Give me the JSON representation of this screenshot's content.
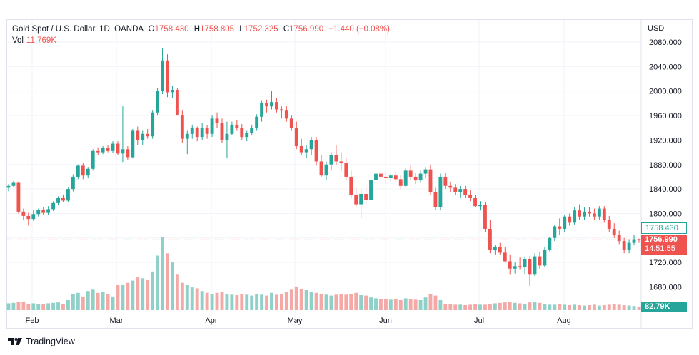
{
  "legend": {
    "symbol": "Gold Spot / U.S. Dollar, 1D, OANDA",
    "o_label": "O",
    "o": "1758.430",
    "h_label": "H",
    "h": "1758.805",
    "l_label": "L",
    "l": "1752.325",
    "c_label": "C",
    "c": "1756.990",
    "change": "−1.440 (−0.08%)",
    "vol_label": "Vol",
    "vol": "11.769K"
  },
  "currency": "USD",
  "tags": {
    "open_price": "1758.430",
    "last_price": "1756.990",
    "countdown": "14:51:55",
    "volume": "82.79K"
  },
  "colors": {
    "up": "#26a69a",
    "down": "#ef5350",
    "up_vol": "#8fd0c8",
    "down_vol": "#f4a9a7"
  },
  "branding": {
    "name": "TradingView"
  },
  "chart_data": {
    "type": "candlestick",
    "title": "Gold Spot / U.S. Dollar, 1D, OANDA",
    "y_ticks": [
      1680,
      1720,
      1760,
      1800,
      1840,
      1880,
      1920,
      1960,
      2000,
      2040,
      2080
    ],
    "ylim": [
      1650,
      2100
    ],
    "x_months": [
      "Feb",
      "Mar",
      "Apr",
      "May",
      "Jun",
      "Jul",
      "Aug"
    ],
    "grid": true,
    "candles": [
      [
        1842,
        1848,
        1836,
        1845,
        15
      ],
      [
        1845,
        1853,
        1843,
        1850,
        16
      ],
      [
        1850,
        1852,
        1800,
        1803,
        18
      ],
      [
        1803,
        1808,
        1790,
        1796,
        19
      ],
      [
        1796,
        1801,
        1780,
        1791,
        14
      ],
      [
        1791,
        1805,
        1788,
        1799,
        15
      ],
      [
        1799,
        1808,
        1795,
        1806,
        14
      ],
      [
        1806,
        1810,
        1797,
        1801,
        13
      ],
      [
        1801,
        1812,
        1798,
        1807,
        15
      ],
      [
        1807,
        1820,
        1804,
        1817,
        16
      ],
      [
        1817,
        1828,
        1813,
        1825,
        17
      ],
      [
        1825,
        1831,
        1818,
        1821,
        14
      ],
      [
        1821,
        1842,
        1819,
        1840,
        22
      ],
      [
        1840,
        1864,
        1836,
        1860,
        35
      ],
      [
        1860,
        1880,
        1856,
        1878,
        38
      ],
      [
        1878,
        1882,
        1856,
        1862,
        30
      ],
      [
        1862,
        1876,
        1858,
        1873,
        42
      ],
      [
        1873,
        1905,
        1870,
        1902,
        45
      ],
      [
        1902,
        1908,
        1896,
        1900,
        38
      ],
      [
        1900,
        1910,
        1897,
        1907,
        40
      ],
      [
        1907,
        1912,
        1900,
        1902,
        36
      ],
      [
        1902,
        1918,
        1899,
        1914,
        30
      ],
      [
        1914,
        1918,
        1895,
        1898,
        55
      ],
      [
        1898,
        1975,
        1884,
        1905,
        55
      ],
      [
        1905,
        1910,
        1888,
        1892,
        60
      ],
      [
        1892,
        1938,
        1890,
        1935,
        65
      ],
      [
        1935,
        1942,
        1912,
        1920,
        72
      ],
      [
        1920,
        1935,
        1912,
        1930,
        70
      ],
      [
        1930,
        1938,
        1922,
        1926,
        66
      ],
      [
        1926,
        1968,
        1922,
        1965,
        85
      ],
      [
        1965,
        2005,
        1960,
        2000,
        120
      ],
      [
        2000,
        2070,
        1995,
        2050,
        160
      ],
      [
        2050,
        2060,
        1990,
        1998,
        125
      ],
      [
        1998,
        2008,
        1988,
        2002,
        105
      ],
      [
        2002,
        2005,
        1960,
        1960,
        78
      ],
      [
        1960,
        1968,
        1915,
        1922,
        60
      ],
      [
        1922,
        1935,
        1897,
        1930,
        55
      ],
      [
        1930,
        1945,
        1922,
        1940,
        50
      ],
      [
        1940,
        1942,
        1918,
        1925,
        48
      ],
      [
        1925,
        1948,
        1920,
        1940,
        42
      ],
      [
        1940,
        1944,
        1922,
        1930,
        38
      ],
      [
        1930,
        1960,
        1925,
        1955,
        36
      ],
      [
        1955,
        1965,
        1940,
        1948,
        38
      ],
      [
        1948,
        1955,
        1915,
        1920,
        40
      ],
      [
        1920,
        1950,
        1890,
        1930,
        35
      ],
      [
        1930,
        1950,
        1928,
        1945,
        34
      ],
      [
        1945,
        1952,
        1935,
        1940,
        33
      ],
      [
        1940,
        1946,
        1920,
        1925,
        36
      ],
      [
        1925,
        1935,
        1918,
        1932,
        34
      ],
      [
        1932,
        1945,
        1928,
        1940,
        32
      ],
      [
        1940,
        1962,
        1935,
        1958,
        36
      ],
      [
        1958,
        1985,
        1950,
        1980,
        34
      ],
      [
        1980,
        1986,
        1965,
        1975,
        32
      ],
      [
        1975,
        2000,
        1970,
        1982,
        38
      ],
      [
        1982,
        1988,
        1965,
        1970,
        34
      ],
      [
        1970,
        1975,
        1955,
        1968,
        36
      ],
      [
        1968,
        1975,
        1950,
        1955,
        40
      ],
      [
        1955,
        1960,
        1935,
        1940,
        45
      ],
      [
        1940,
        1950,
        1905,
        1910,
        52
      ],
      [
        1910,
        1922,
        1895,
        1900,
        46
      ],
      [
        1900,
        1912,
        1890,
        1905,
        44
      ],
      [
        1905,
        1925,
        1895,
        1920,
        40
      ],
      [
        1920,
        1925,
        1878,
        1885,
        38
      ],
      [
        1885,
        1895,
        1860,
        1862,
        36
      ],
      [
        1862,
        1885,
        1855,
        1880,
        34
      ],
      [
        1880,
        1900,
        1870,
        1895,
        32
      ],
      [
        1895,
        1912,
        1880,
        1885,
        34
      ],
      [
        1885,
        1900,
        1870,
        1882,
        36
      ],
      [
        1882,
        1890,
        1855,
        1860,
        34
      ],
      [
        1860,
        1870,
        1825,
        1830,
        35
      ],
      [
        1830,
        1842,
        1810,
        1815,
        38
      ],
      [
        1815,
        1838,
        1792,
        1832,
        33
      ],
      [
        1832,
        1845,
        1815,
        1822,
        32
      ],
      [
        1822,
        1858,
        1820,
        1855,
        28
      ],
      [
        1855,
        1870,
        1850,
        1865,
        26
      ],
      [
        1865,
        1872,
        1855,
        1860,
        25
      ],
      [
        1860,
        1868,
        1848,
        1858,
        24
      ],
      [
        1858,
        1866,
        1852,
        1862,
        23
      ],
      [
        1862,
        1868,
        1852,
        1856,
        24
      ],
      [
        1856,
        1862,
        1840,
        1845,
        22
      ],
      [
        1845,
        1875,
        1842,
        1870,
        26
      ],
      [
        1870,
        1878,
        1855,
        1860,
        24
      ],
      [
        1860,
        1866,
        1848,
        1854,
        23
      ],
      [
        1854,
        1870,
        1850,
        1865,
        22
      ],
      [
        1865,
        1876,
        1858,
        1872,
        28
      ],
      [
        1872,
        1880,
        1830,
        1835,
        36
      ],
      [
        1835,
        1842,
        1805,
        1810,
        32
      ],
      [
        1810,
        1865,
        1805,
        1860,
        22
      ],
      [
        1860,
        1866,
        1840,
        1845,
        14
      ],
      [
        1845,
        1852,
        1835,
        1842,
        13
      ],
      [
        1842,
        1848,
        1830,
        1835,
        12
      ],
      [
        1835,
        1845,
        1825,
        1840,
        12
      ],
      [
        1840,
        1845,
        1825,
        1830,
        11
      ],
      [
        1830,
        1838,
        1820,
        1825,
        12
      ],
      [
        1825,
        1830,
        1810,
        1812,
        13
      ],
      [
        1812,
        1820,
        1805,
        1814,
        12
      ],
      [
        1814,
        1818,
        1770,
        1775,
        12
      ],
      [
        1775,
        1790,
        1735,
        1740,
        14
      ],
      [
        1740,
        1748,
        1732,
        1745,
        15
      ],
      [
        1745,
        1752,
        1732,
        1736,
        16
      ],
      [
        1736,
        1745,
        1720,
        1722,
        17
      ],
      [
        1722,
        1732,
        1700,
        1710,
        18
      ],
      [
        1710,
        1720,
        1702,
        1714,
        16
      ],
      [
        1714,
        1728,
        1708,
        1712,
        15
      ],
      [
        1712,
        1730,
        1700,
        1725,
        14
      ],
      [
        1725,
        1730,
        1682,
        1700,
        17
      ],
      [
        1700,
        1735,
        1698,
        1730,
        18
      ],
      [
        1730,
        1738,
        1710,
        1715,
        16
      ],
      [
        1715,
        1745,
        1712,
        1740,
        14
      ],
      [
        1740,
        1762,
        1738,
        1760,
        12
      ],
      [
        1760,
        1782,
        1755,
        1779,
        12
      ],
      [
        1779,
        1792,
        1765,
        1775,
        13
      ],
      [
        1775,
        1798,
        1770,
        1795,
        12
      ],
      [
        1795,
        1800,
        1780,
        1785,
        11
      ],
      [
        1785,
        1810,
        1782,
        1805,
        12
      ],
      [
        1805,
        1815,
        1790,
        1795,
        11
      ],
      [
        1795,
        1810,
        1790,
        1803,
        10
      ],
      [
        1803,
        1810,
        1795,
        1800,
        11
      ],
      [
        1800,
        1808,
        1790,
        1795,
        12
      ],
      [
        1795,
        1812,
        1790,
        1808,
        10
      ],
      [
        1808,
        1812,
        1785,
        1790,
        11
      ],
      [
        1790,
        1796,
        1770,
        1775,
        12
      ],
      [
        1775,
        1784,
        1760,
        1765,
        13
      ],
      [
        1765,
        1772,
        1750,
        1755,
        12
      ],
      [
        1755,
        1760,
        1735,
        1740,
        11
      ],
      [
        1740,
        1758,
        1735,
        1752,
        10
      ],
      [
        1752,
        1765,
        1748,
        1758,
        9
      ],
      [
        1758,
        1759,
        1752,
        1757,
        8
      ]
    ]
  }
}
